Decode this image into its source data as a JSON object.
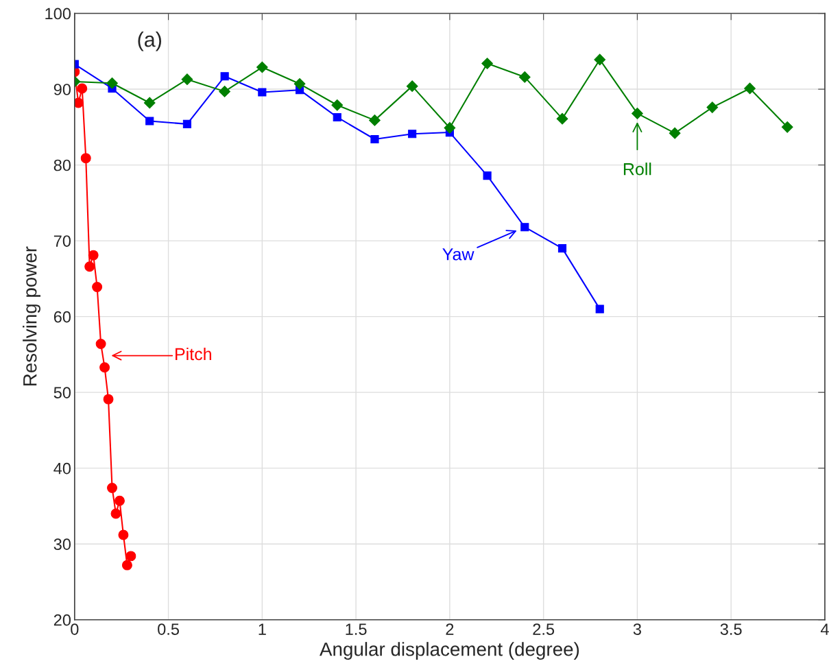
{
  "chart_data": {
    "type": "line",
    "title": "(a)",
    "xlabel": "Angular displacement (degree)",
    "ylabel": "Resolving power",
    "xlim": [
      0,
      4
    ],
    "ylim": [
      20,
      100
    ],
    "xticks": [
      0,
      0.5,
      1,
      1.5,
      2,
      2.5,
      3,
      3.5,
      4
    ],
    "yticks": [
      20,
      30,
      40,
      50,
      60,
      70,
      80,
      90,
      100
    ],
    "grid": true,
    "line_style": "solid",
    "series": [
      {
        "name": "Pitch",
        "color": "#ff0000",
        "marker": "circle",
        "x": [
          0,
          0.02,
          0.04,
          0.06,
          0.08,
          0.1,
          0.12,
          0.14,
          0.16,
          0.18,
          0.2,
          0.22,
          0.24,
          0.26,
          0.28,
          0.3
        ],
        "values": [
          92.3,
          88.2,
          90.1,
          80.9,
          66.6,
          68.1,
          63.9,
          56.4,
          53.3,
          49.1,
          37.4,
          34.0,
          35.7,
          31.2,
          27.2,
          28.4
        ]
      },
      {
        "name": "Yaw",
        "color": "#0000ff",
        "marker": "square",
        "x": [
          0,
          0.2,
          0.4,
          0.6,
          0.8,
          1.0,
          1.2,
          1.4,
          1.6,
          1.8,
          2.0,
          2.2,
          2.4,
          2.6,
          2.8
        ],
        "values": [
          93.3,
          90.1,
          85.8,
          85.4,
          91.7,
          89.6,
          89.9,
          86.3,
          83.4,
          84.1,
          84.3,
          78.6,
          71.8,
          69.0,
          61.0
        ]
      },
      {
        "name": "Roll",
        "color": "#007f00",
        "marker": "diamond",
        "x": [
          0,
          0.2,
          0.4,
          0.6,
          0.8,
          1.0,
          1.2,
          1.4,
          1.6,
          1.8,
          2.0,
          2.2,
          2.4,
          2.6,
          2.8,
          3.0,
          3.2,
          3.4,
          3.6,
          3.8
        ],
        "values": [
          91.0,
          90.8,
          88.2,
          91.3,
          89.7,
          92.9,
          90.7,
          87.9,
          85.9,
          90.4,
          84.9,
          93.4,
          91.6,
          86.1,
          93.9,
          86.8,
          84.2,
          87.6,
          90.1,
          85.0
        ]
      }
    ]
  }
}
